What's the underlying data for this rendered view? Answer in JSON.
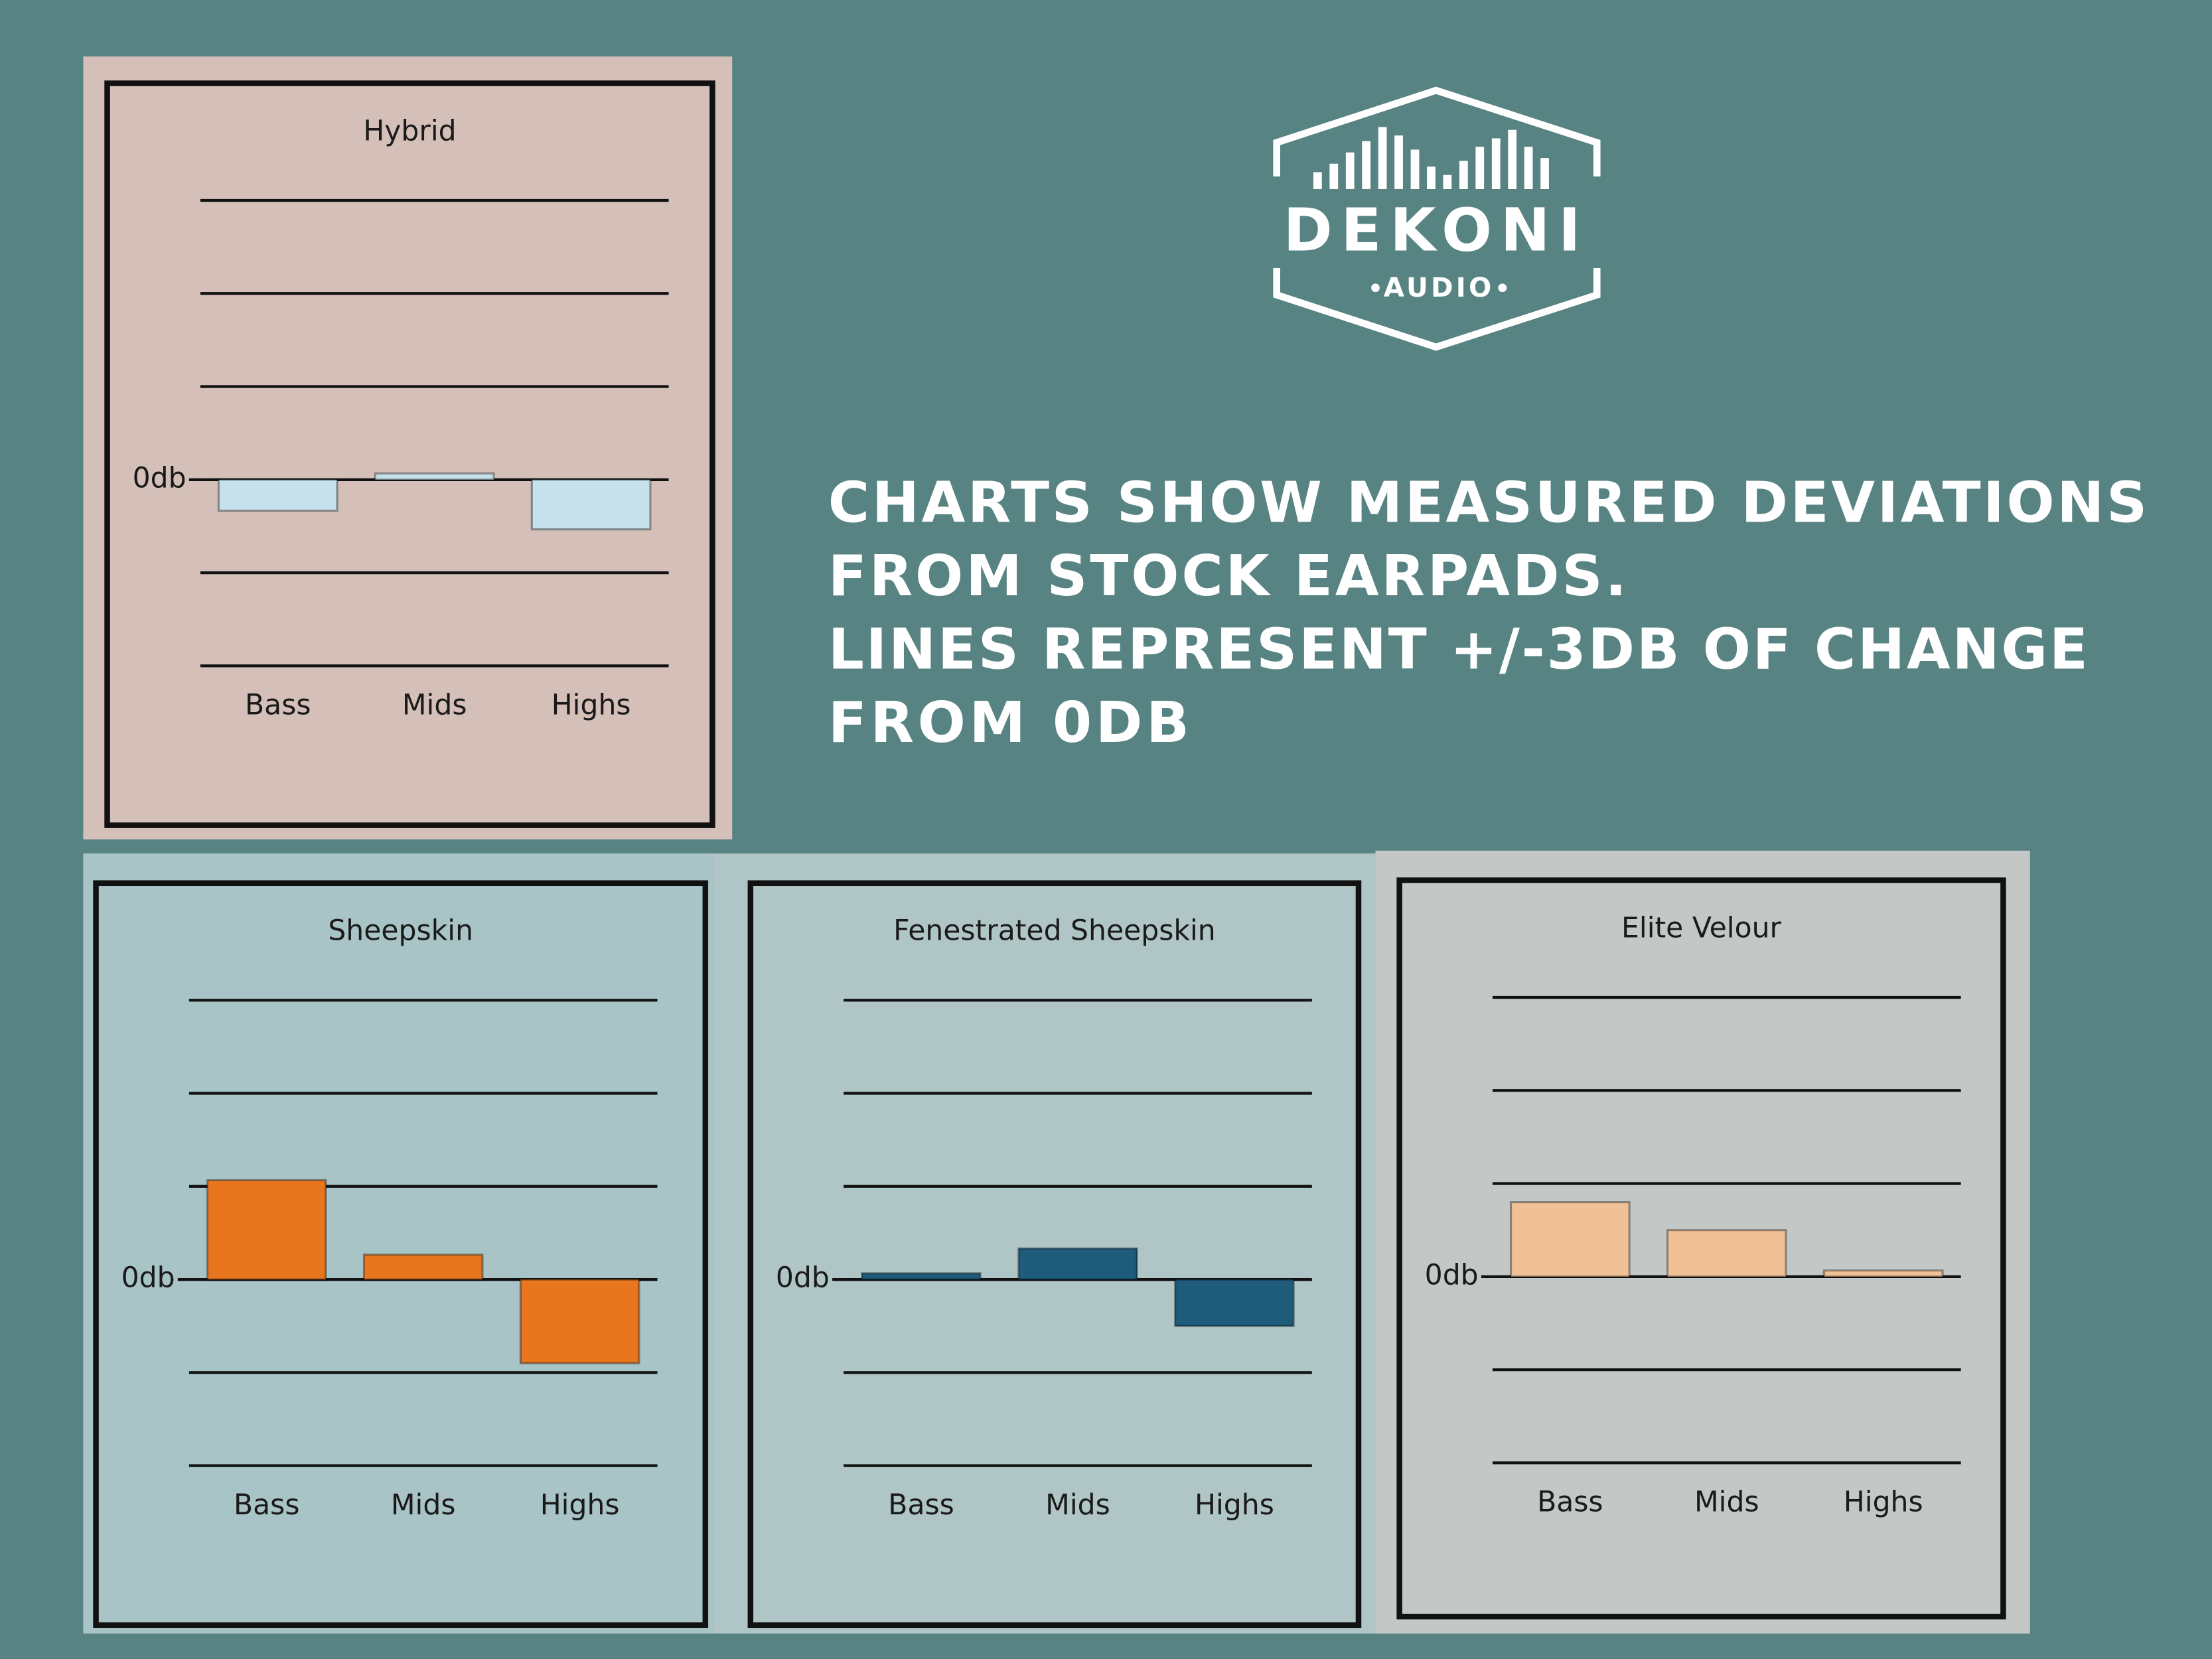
{
  "logo": {
    "brand": "DEKONI",
    "sub": "AUDIO"
  },
  "headline": [
    "CHARTS SHOW MEASURED DEVIATIONS",
    "FROM STOCK EARPADS.",
    "LINES REPRESENT +/-3DB OF CHANGE",
    "FROM 0DB"
  ],
  "chart_data": [
    {
      "type": "bar",
      "title": "Hybrid",
      "categories": [
        "Bass",
        "Mids",
        "Highs"
      ],
      "values": [
        -1,
        0.2,
        -1.6
      ],
      "color": "#c6e1eb",
      "ylim": [
        -6,
        9
      ],
      "yticks": [
        {
          "value": 0,
          "label": "0db"
        }
      ],
      "grid": [
        9,
        6,
        3,
        0,
        -3,
        -6
      ]
    },
    {
      "type": "bar",
      "title": "Sheepskin",
      "categories": [
        "Bass",
        "Mids",
        "Highs"
      ],
      "values": [
        3.2,
        0.8,
        -2.7
      ],
      "color": "#e8761f",
      "ylim": [
        -6,
        9
      ],
      "yticks": [
        {
          "value": 0,
          "label": "0db"
        }
      ],
      "grid": [
        9,
        6,
        3,
        0,
        -3,
        -6
      ]
    },
    {
      "type": "bar",
      "title": "Fenestrated Sheepskin",
      "categories": [
        "Bass",
        "Mids",
        "Highs"
      ],
      "values": [
        0.2,
        1,
        -1.5
      ],
      "color": "#1f5b7b",
      "ylim": [
        -6,
        9
      ],
      "yticks": [
        {
          "value": 0,
          "label": "0db"
        }
      ],
      "grid": [
        9,
        6,
        3,
        0,
        -3,
        -6
      ]
    },
    {
      "type": "bar",
      "title": "Elite Velour",
      "categories": [
        "Bass",
        "Mids",
        "Highs"
      ],
      "values": [
        2.4,
        1.5,
        0.2
      ],
      "color": "#f0c196",
      "ylim": [
        -6,
        9
      ],
      "yticks": [
        {
          "value": 0,
          "label": "0db"
        }
      ],
      "grid": [
        9,
        6,
        3,
        0,
        -3,
        -6
      ]
    }
  ]
}
